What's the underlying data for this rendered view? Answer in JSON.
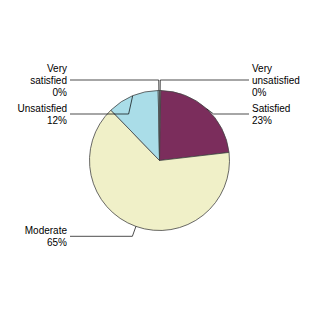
{
  "chart_data": {
    "type": "pie",
    "categories": [
      "Very\nunsatisfied",
      "Satisfied",
      "Moderate",
      "Unsatisfied",
      "Very\nsatisfied"
    ],
    "values": [
      0.3,
      23,
      65,
      12,
      0.3
    ],
    "value_labels": [
      "0%",
      "23%",
      "65%",
      "12%",
      "0%"
    ],
    "colors": [
      "#e8e8e8",
      "#7b2d5c",
      "#f0f0c8",
      "#aadde8",
      "#aadde8"
    ],
    "data_labels": true
  }
}
